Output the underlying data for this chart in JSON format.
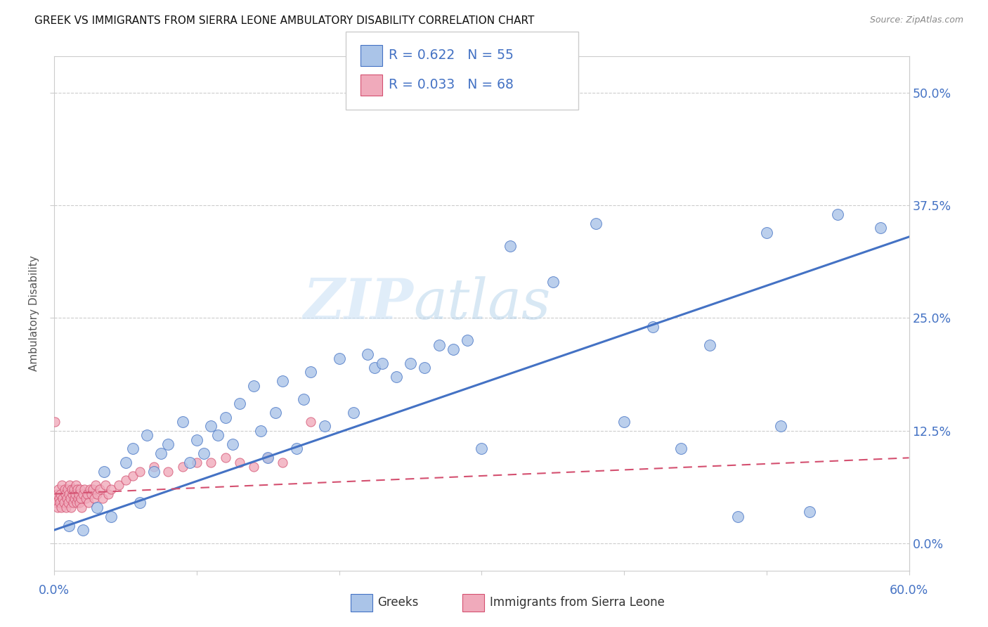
{
  "title": "GREEK VS IMMIGRANTS FROM SIERRA LEONE AMBULATORY DISABILITY CORRELATION CHART",
  "source": "Source: ZipAtlas.com",
  "ylabel": "Ambulatory Disability",
  "ytick_values": [
    0.0,
    12.5,
    25.0,
    37.5,
    50.0
  ],
  "xlim": [
    0.0,
    60.0
  ],
  "ylim": [
    -3.0,
    54.0
  ],
  "watermark_zip": "ZIP",
  "watermark_atlas": "atlas",
  "blue_color": "#aac4e8",
  "pink_color": "#f0aabb",
  "line_blue": "#4472c4",
  "line_pink": "#d45070",
  "greek_scatter_x": [
    1.0,
    2.0,
    3.0,
    3.5,
    4.0,
    5.0,
    5.5,
    6.0,
    6.5,
    7.0,
    7.5,
    8.0,
    9.0,
    9.5,
    10.0,
    10.5,
    11.0,
    11.5,
    12.0,
    12.5,
    13.0,
    14.0,
    14.5,
    15.0,
    15.5,
    16.0,
    17.0,
    17.5,
    18.0,
    19.0,
    20.0,
    21.0,
    22.0,
    22.5,
    23.0,
    24.0,
    25.0,
    26.0,
    27.0,
    28.0,
    29.0,
    30.0,
    32.0,
    35.0,
    38.0,
    40.0,
    42.0,
    44.0,
    46.0,
    48.0,
    50.0,
    51.0,
    53.0,
    55.0,
    58.0
  ],
  "greek_scatter_y": [
    2.0,
    1.5,
    4.0,
    8.0,
    3.0,
    9.0,
    10.5,
    4.5,
    12.0,
    8.0,
    10.0,
    11.0,
    13.5,
    9.0,
    11.5,
    10.0,
    13.0,
    12.0,
    14.0,
    11.0,
    15.5,
    17.5,
    12.5,
    9.5,
    14.5,
    18.0,
    10.5,
    16.0,
    19.0,
    13.0,
    20.5,
    14.5,
    21.0,
    19.5,
    20.0,
    18.5,
    20.0,
    19.5,
    22.0,
    21.5,
    22.5,
    10.5,
    33.0,
    29.0,
    35.5,
    13.5,
    24.0,
    10.5,
    22.0,
    3.0,
    34.5,
    13.0,
    3.5,
    36.5,
    35.0
  ],
  "sierra_scatter_x": [
    0.1,
    0.15,
    0.2,
    0.25,
    0.3,
    0.35,
    0.4,
    0.45,
    0.5,
    0.55,
    0.6,
    0.65,
    0.7,
    0.75,
    0.8,
    0.85,
    0.9,
    0.95,
    1.0,
    1.05,
    1.1,
    1.15,
    1.2,
    1.25,
    1.3,
    1.35,
    1.4,
    1.45,
    1.5,
    1.55,
    1.6,
    1.65,
    1.7,
    1.75,
    1.8,
    1.85,
    1.9,
    2.0,
    2.1,
    2.2,
    2.3,
    2.4,
    2.5,
    2.6,
    2.7,
    2.8,
    2.9,
    3.0,
    3.2,
    3.4,
    3.6,
    3.8,
    4.0,
    4.5,
    5.0,
    5.5,
    6.0,
    7.0,
    8.0,
    9.0,
    10.0,
    11.0,
    12.0,
    13.0,
    14.0,
    15.0,
    16.0,
    18.0
  ],
  "sierra_scatter_y": [
    5.0,
    4.5,
    5.5,
    4.0,
    6.0,
    5.0,
    4.5,
    5.5,
    4.0,
    6.5,
    5.0,
    4.5,
    6.0,
    5.5,
    4.0,
    5.0,
    6.0,
    4.5,
    5.5,
    6.5,
    5.0,
    4.0,
    6.0,
    5.5,
    4.5,
    6.0,
    5.0,
    5.5,
    6.5,
    4.5,
    6.0,
    5.0,
    5.5,
    4.5,
    6.0,
    5.0,
    4.0,
    5.5,
    6.0,
    5.0,
    5.5,
    4.5,
    6.0,
    5.5,
    6.0,
    5.0,
    6.5,
    5.5,
    6.0,
    5.0,
    6.5,
    5.5,
    6.0,
    6.5,
    7.0,
    7.5,
    8.0,
    8.5,
    8.0,
    8.5,
    9.0,
    9.0,
    9.5,
    9.0,
    8.5,
    9.5,
    9.0,
    13.5
  ],
  "sierra_one_outlier_x": 0.05,
  "sierra_one_outlier_y": 13.5,
  "greek_line_x": [
    0.0,
    60.0
  ],
  "greek_line_y": [
    1.5,
    34.0
  ],
  "sierra_line_x": [
    0.0,
    60.0
  ],
  "sierra_line_y": [
    5.5,
    9.5
  ]
}
